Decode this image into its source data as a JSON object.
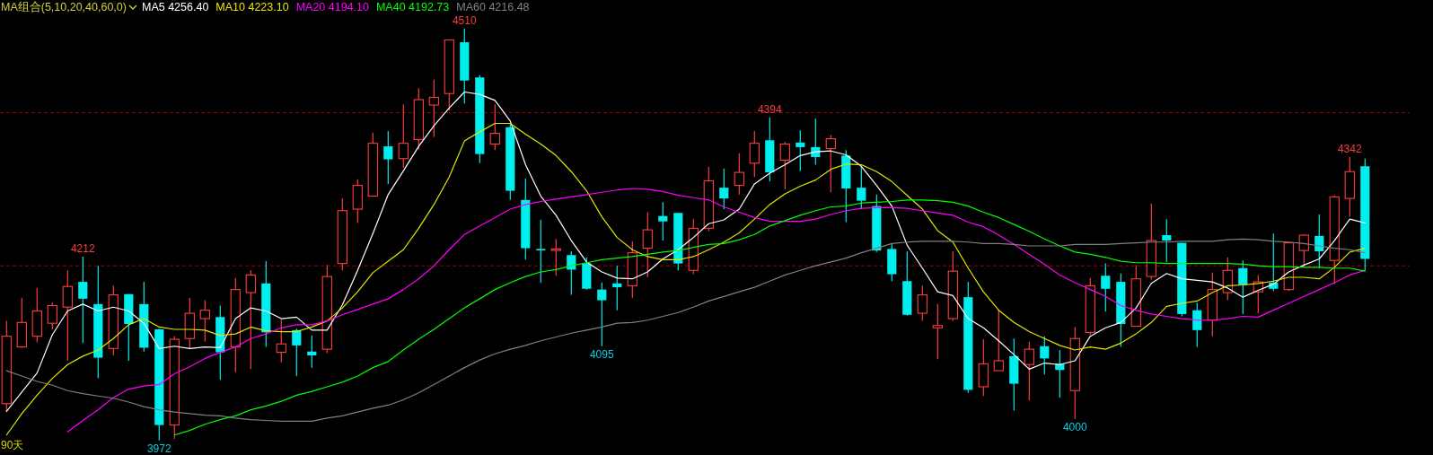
{
  "chart_data": {
    "type": "candlestick",
    "title": "MA组合(5,10,20,40,60,0)",
    "categories": [
      null,
      null,
      null,
      null,
      null,
      null,
      null,
      null,
      null,
      null,
      null,
      null,
      null,
      null,
      null,
      null,
      null,
      null,
      null,
      null,
      null,
      null,
      null,
      null,
      null,
      null,
      null,
      null,
      null,
      null,
      null,
      null,
      null,
      null,
      null,
      null,
      null,
      null,
      null,
      null,
      null,
      null,
      null,
      null,
      null,
      null,
      null,
      null,
      null,
      null,
      null,
      null,
      null,
      null,
      null,
      null,
      null,
      null,
      null,
      null,
      null,
      null,
      null,
      null,
      null,
      null,
      null,
      null,
      null,
      null,
      null,
      null,
      null,
      null,
      null,
      null,
      null,
      null,
      null,
      null,
      null,
      null,
      null,
      null,
      null,
      null,
      null,
      null,
      null,
      null
    ],
    "ohlc": [
      [
        4020,
        4128,
        4009,
        4108
      ],
      [
        4094,
        4158,
        4093,
        4126
      ],
      [
        4108,
        4171,
        4100,
        4141
      ],
      [
        4125,
        4152,
        4117,
        4148
      ],
      [
        4146,
        4194,
        4076,
        4173
      ],
      [
        4179,
        4212,
        4099,
        4157
      ],
      [
        4150,
        4200,
        4053,
        4080
      ],
      [
        4092,
        4174,
        4083,
        4162
      ],
      [
        4163,
        4163,
        4076,
        4124
      ],
      [
        4150,
        4179,
        4088,
        4093
      ],
      [
        4117,
        4118,
        3972,
        3992
      ],
      [
        3992,
        4108,
        3974,
        4104
      ],
      [
        4105,
        4158,
        4091,
        4138
      ],
      [
        4131,
        4155,
        4101,
        4142
      ],
      [
        4133,
        4148,
        4051,
        4087
      ],
      [
        4094,
        4184,
        4061,
        4169
      ],
      [
        4165,
        4194,
        4065,
        4188
      ],
      [
        4177,
        4206,
        4094,
        4113
      ],
      [
        4087,
        4130,
        4074,
        4098
      ],
      [
        4116,
        4118,
        4056,
        4096
      ],
      [
        4088,
        4109,
        4067,
        4083
      ],
      [
        4091,
        4201,
        4086,
        4186
      ],
      [
        4203,
        4288,
        4194,
        4272
      ],
      [
        4274,
        4313,
        4256,
        4305
      ],
      [
        4291,
        4374,
        4291,
        4360
      ],
      [
        4356,
        4376,
        4307,
        4339
      ],
      [
        4340,
        4411,
        4328,
        4360
      ],
      [
        4365,
        4432,
        4352,
        4417
      ],
      [
        4410,
        4443,
        4368,
        4420
      ],
      [
        4425,
        4495,
        4403,
        4495
      ],
      [
        4492,
        4510,
        4412,
        4442
      ],
      [
        4446,
        4449,
        4334,
        4346
      ],
      [
        4359,
        4411,
        4351,
        4373
      ],
      [
        4381,
        4385,
        4286,
        4298
      ],
      [
        4286,
        4314,
        4208,
        4223
      ],
      [
        4222,
        4260,
        4178,
        4221
      ],
      [
        4221,
        4235,
        4187,
        4222
      ],
      [
        4214,
        4219,
        4162,
        4195
      ],
      [
        4203,
        4211,
        4169,
        4170
      ],
      [
        4169,
        4178,
        4095,
        4155
      ],
      [
        4177,
        4200,
        4142,
        4172
      ],
      [
        4174,
        4232,
        4158,
        4217
      ],
      [
        4223,
        4270,
        4185,
        4247
      ],
      [
        4265,
        4283,
        4233,
        4258
      ],
      [
        4269,
        4269,
        4194,
        4203
      ],
      [
        4194,
        4261,
        4189,
        4249
      ],
      [
        4249,
        4329,
        4245,
        4311
      ],
      [
        4302,
        4327,
        4274,
        4288
      ],
      [
        4305,
        4347,
        4293,
        4322
      ],
      [
        4334,
        4376,
        4316,
        4360
      ],
      [
        4364,
        4394,
        4310,
        4322
      ],
      [
        4338,
        4362,
        4300,
        4359
      ],
      [
        4361,
        4377,
        4324,
        4355
      ],
      [
        4355,
        4392,
        4332,
        4342
      ],
      [
        4353,
        4371,
        4296,
        4366
      ],
      [
        4344,
        4351,
        4257,
        4301
      ],
      [
        4302,
        4330,
        4274,
        4285
      ],
      [
        4278,
        4293,
        4218,
        4220
      ],
      [
        4222,
        4229,
        4180,
        4189
      ],
      [
        4180,
        4219,
        4135,
        4136
      ],
      [
        4138,
        4174,
        4128,
        4162
      ],
      [
        4119,
        4150,
        4078,
        4122
      ],
      [
        4131,
        4219,
        4128,
        4193
      ],
      [
        4159,
        4179,
        4034,
        4038
      ],
      [
        4042,
        4104,
        4030,
        4072
      ],
      [
        4063,
        4143,
        4063,
        4076
      ],
      [
        4082,
        4105,
        4011,
        4046
      ],
      [
        4071,
        4101,
        4024,
        4091
      ],
      [
        4095,
        4108,
        4058,
        4079
      ],
      [
        4072,
        4090,
        4028,
        4064
      ],
      [
        4037,
        4120,
        4000,
        4105
      ],
      [
        4113,
        4184,
        4110,
        4174
      ],
      [
        4187,
        4203,
        4140,
        4170
      ],
      [
        4179,
        4190,
        4094,
        4124
      ],
      [
        4121,
        4201,
        4121,
        4183
      ],
      [
        4186,
        4281,
        4182,
        4233
      ],
      [
        4240,
        4261,
        4205,
        4233
      ],
      [
        4230,
        4230,
        4134,
        4137
      ],
      [
        4142,
        4152,
        4094,
        4116
      ],
      [
        4129,
        4191,
        4108,
        4169
      ],
      [
        4165,
        4211,
        4155,
        4194
      ],
      [
        4197,
        4207,
        4137,
        4175
      ],
      [
        4166,
        4188,
        4138,
        4179
      ],
      [
        4178,
        4242,
        4167,
        4170
      ],
      [
        4169,
        4230,
        4167,
        4230
      ],
      [
        4220,
        4241,
        4199,
        4240
      ],
      [
        4239,
        4267,
        4197,
        4219
      ],
      [
        4207,
        4292,
        4176,
        4290
      ],
      [
        4288,
        4342,
        4264,
        4323
      ],
      [
        4330,
        4340,
        4194,
        4209
      ]
    ],
    "series": [
      {
        "name": "MA5 4256.40",
        "type": "line",
        "color": "#ffffff",
        "values": [
          4010,
          4035,
          4060,
          4110,
          4141,
          4150,
          4141,
          4146,
          4141,
          4125,
          4092,
          4095,
          4092,
          4094,
          4093,
          4131,
          4145,
          4141,
          4131,
          4133,
          4116,
          4116,
          4149,
          4194,
          4242,
          4293,
          4324,
          4356,
          4383,
          4406,
          4427,
          4424,
          4416,
          4389,
          4332,
          4291,
          4266,
          4233,
          4205,
          4192,
          4184,
          4183,
          4192,
          4209,
          4221,
          4237,
          4255,
          4260,
          4274,
          4307,
          4321,
          4332,
          4344,
          4349,
          4350,
          4345,
          4330,
          4305,
          4278,
          4227,
          4197,
          4166,
          4161,
          4131,
          4119,
          4102,
          4084,
          4065,
          4073,
          4071,
          4076,
          4108,
          4119,
          4126,
          4145,
          4177,
          4190,
          4183,
          4181,
          4179,
          4171,
          4159,
          4168,
          4176,
          4192,
          4201,
          4209,
          4233,
          4261,
          4256
        ]
      },
      {
        "name": "MA10 4223.10",
        "type": "line",
        "color": "#e6e600",
        "values": [
          3979,
          4007,
          4031,
          4053,
          4071,
          4082,
          4090,
          4105,
          4123,
          4131,
          4120,
          4117,
          4117,
          4116,
          4109,
          4111,
          4120,
          4115,
          4114,
          4114,
          4120,
          4128,
          4145,
          4166,
          4191,
          4206,
          4221,
          4249,
          4280,
          4316,
          4363,
          4375,
          4386,
          4386,
          4372,
          4359,
          4344,
          4323,
          4298,
          4264,
          4237,
          4221,
          4212,
          4208,
          4208,
          4212,
          4221,
          4231,
          4243,
          4261,
          4280,
          4294,
          4304,
          4312,
          4326,
          4333,
          4332,
          4323,
          4310,
          4292,
          4274,
          4246,
          4231,
          4197,
          4166,
          4142,
          4126,
          4114,
          4105,
          4096,
          4090,
          4094,
          4091,
          4099,
          4111,
          4126,
          4147,
          4151,
          4154,
          4165,
          4174,
          4175,
          4177,
          4180,
          4185,
          4185,
          4183,
          4198,
          4218,
          4223
        ]
      },
      {
        "name": "MA20 4194.10",
        "type": "line",
        "color": "#ff00ff",
        "values": [
          null,
          null,
          null,
          null,
          3983,
          3998,
          4012,
          4028,
          4039,
          4043,
          4045,
          4059,
          4068,
          4079,
          4087,
          4094,
          4105,
          4111,
          4119,
          4123,
          4123,
          4128,
          4136,
          4143,
          4150,
          4157,
          4169,
          4183,
          4200,
          4221,
          4241,
          4252,
          4263,
          4274,
          4280,
          4284,
          4287,
          4290,
          4293,
          4296,
          4299,
          4301,
          4300,
          4297,
          4292,
          4289,
          4286,
          4277,
          4270,
          4263,
          4258,
          4258,
          4258,
          4261,
          4267,
          4272,
          4275,
          4276,
          4276,
          4275,
          4272,
          4269,
          4266,
          4257,
          4251,
          4240,
          4228,
          4215,
          4202,
          4188,
          4178,
          4169,
          4160,
          4148,
          4142,
          4137,
          4134,
          4131,
          4129,
          4129,
          4131,
          4134,
          4133,
          4142,
          4151,
          4160,
          4169,
          4178,
          4188,
          4194
        ]
      },
      {
        "name": "MA40 4192.73",
        "type": "line",
        "color": "#00ff00",
        "values": [
          null,
          null,
          null,
          null,
          null,
          null,
          null,
          null,
          null,
          null,
          null,
          3979,
          3985,
          3993,
          3999,
          4004,
          4012,
          4017,
          4023,
          4031,
          4036,
          4042,
          4048,
          4056,
          4067,
          4075,
          4090,
          4104,
          4117,
          4131,
          4145,
          4157,
          4169,
          4178,
          4186,
          4192,
          4195,
          4200,
          4204,
          4208,
          4210,
          4212,
          4215,
          4218,
          4220,
          4224,
          4228,
          4229,
          4234,
          4241,
          4252,
          4259,
          4266,
          4272,
          4277,
          4278,
          4282,
          4283,
          4284,
          4286,
          4286,
          4285,
          4283,
          4278,
          4270,
          4263,
          4254,
          4245,
          4235,
          4226,
          4218,
          4215,
          4211,
          4206,
          4204,
          4204,
          4203,
          4203,
          4203,
          4203,
          4203,
          4202,
          4200,
          4199,
          4199,
          4198,
          4198,
          4197,
          4197,
          4193
        ]
      },
      {
        "name": "MA60 4216.48",
        "type": "line",
        "color": "#808080",
        "values": [
          4063,
          4056,
          4049,
          4044,
          4037,
          4033,
          4030,
          4027,
          4022,
          4016,
          4012,
          4009,
          4007,
          4005,
          4004,
          4001,
          3999,
          3998,
          3997,
          3997,
          3997,
          4001,
          4004,
          4009,
          4014,
          4018,
          4025,
          4034,
          4045,
          4056,
          4067,
          4077,
          4085,
          4091,
          4096,
          4102,
          4107,
          4112,
          4116,
          4120,
          4125,
          4126,
          4129,
          4134,
          4139,
          4146,
          4154,
          4160,
          4166,
          4172,
          4180,
          4188,
          4194,
          4200,
          4205,
          4210,
          4217,
          4223,
          4229,
          4231,
          4232,
          4232,
          4232,
          4231,
          4229,
          4229,
          4228,
          4226,
          4226,
          4226,
          4228,
          4228,
          4228,
          4229,
          4230,
          4231,
          4231,
          4232,
          4232,
          4232,
          4234,
          4235,
          4234,
          4232,
          4231,
          4229,
          4226,
          4223,
          4221,
          4217
        ]
      }
    ],
    "ref_lines": [
      {
        "axis": "y",
        "value": 4400,
        "color": "#a00000",
        "line_style": "dashed"
      },
      {
        "axis": "y",
        "value": 4200,
        "color": "#a00000",
        "line_style": "dashed"
      }
    ],
    "annotations": [
      "90天",
      {
        "text": "4212",
        "y": 4212
      },
      {
        "text": "3972",
        "y": 3972
      },
      {
        "text": "4510",
        "y": 4510
      },
      {
        "text": "4095",
        "y": 4095
      },
      {
        "text": "4394",
        "y": 4394
      },
      {
        "text": "4000",
        "y": 4000
      },
      {
        "text": "4342",
        "y": 4342
      }
    ],
    "legend": "top left"
  }
}
